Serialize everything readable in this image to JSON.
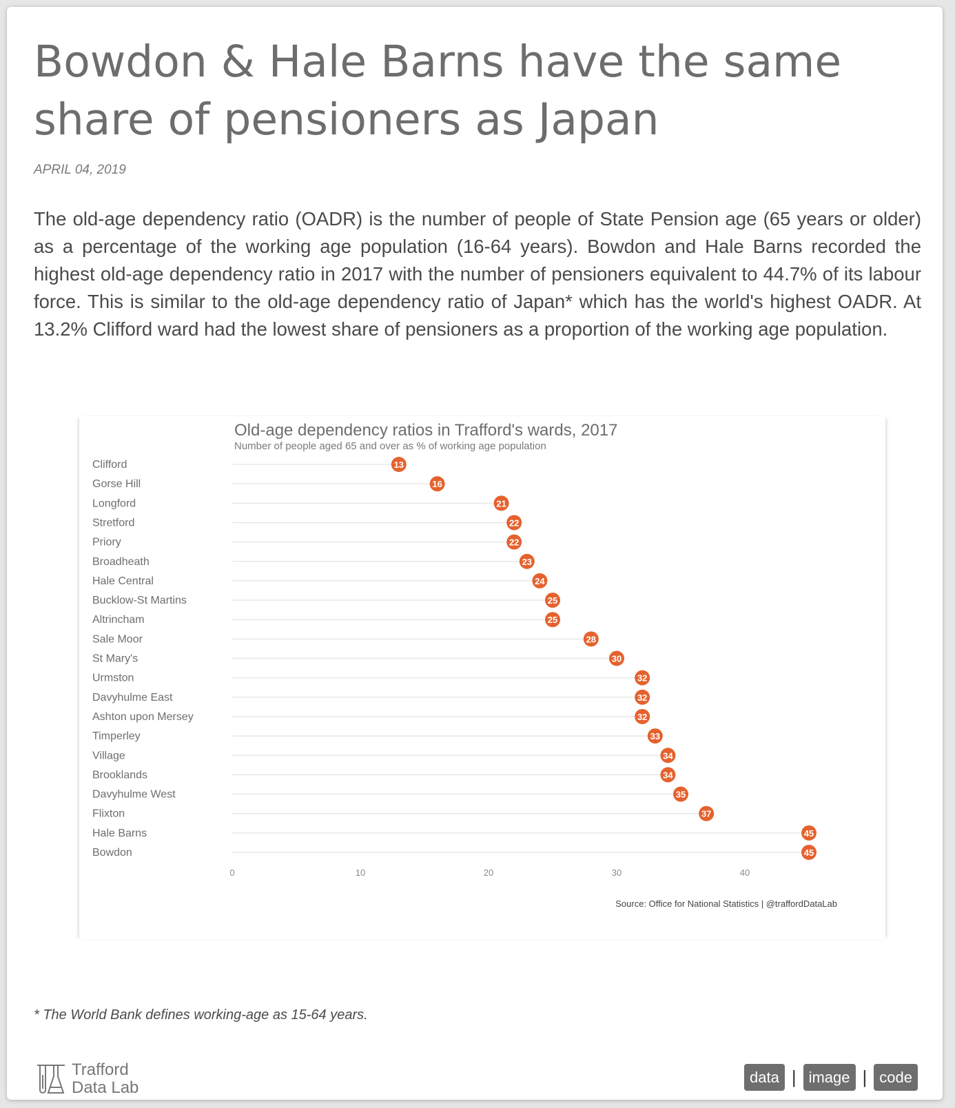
{
  "article": {
    "title": "Bowdon & Hale Barns have the same share of pensioners as Japan",
    "date": "APRIL 04, 2019",
    "intro": "The old-age dependency ratio (OADR) is the number of people of State Pension age (65 years or older) as a percentage of the working age population (16-64 years). Bowdon and Hale Barns recorded the highest old-age dependency ratio in 2017 with the number of pensioners equivalent to 44.7% of its labour force. This is similar to the old-age dependency ratio of Japan* which has the world's highest OADR. At 13.2% Clifford ward had the lowest share of pensioners as a proportion of the working age population.",
    "footnote": "* The World Bank defines working-age as 15-64 years."
  },
  "footer": {
    "logo_line1": "Trafford",
    "logo_line2": "Data Lab",
    "links": [
      "data",
      "image",
      "code"
    ]
  },
  "colors": {
    "accent": "#e5622e",
    "title_text": "#6d6d6d",
    "gridline": "#e8e8e8"
  },
  "chart_data": {
    "type": "scatter",
    "title": "Old-age dependency ratios in Trafford's wards, 2017",
    "subtitle": "Number of people aged 65 and over as % of working age population",
    "caption": "Source: Office for National Statistics  |  @traffordDataLab",
    "categories": [
      "Clifford",
      "Gorse Hill",
      "Longford",
      "Stretford",
      "Priory",
      "Broadheath",
      "Hale Central",
      "Bucklow-St Martins",
      "Altrincham",
      "Sale Moor",
      "St Mary's",
      "Urmston",
      "Davyhulme East",
      "Ashton upon Mersey",
      "Timperley",
      "Village",
      "Brooklands",
      "Davyhulme West",
      "Flixton",
      "Hale Barns",
      "Bowdon"
    ],
    "values": [
      13,
      16,
      21,
      22,
      22,
      23,
      24,
      25,
      25,
      28,
      30,
      32,
      32,
      32,
      33,
      34,
      34,
      35,
      37,
      45,
      45
    ],
    "xlim": [
      0,
      45
    ],
    "xticks": [
      0,
      10,
      20,
      30,
      40
    ],
    "grid": true,
    "legend": "none"
  }
}
